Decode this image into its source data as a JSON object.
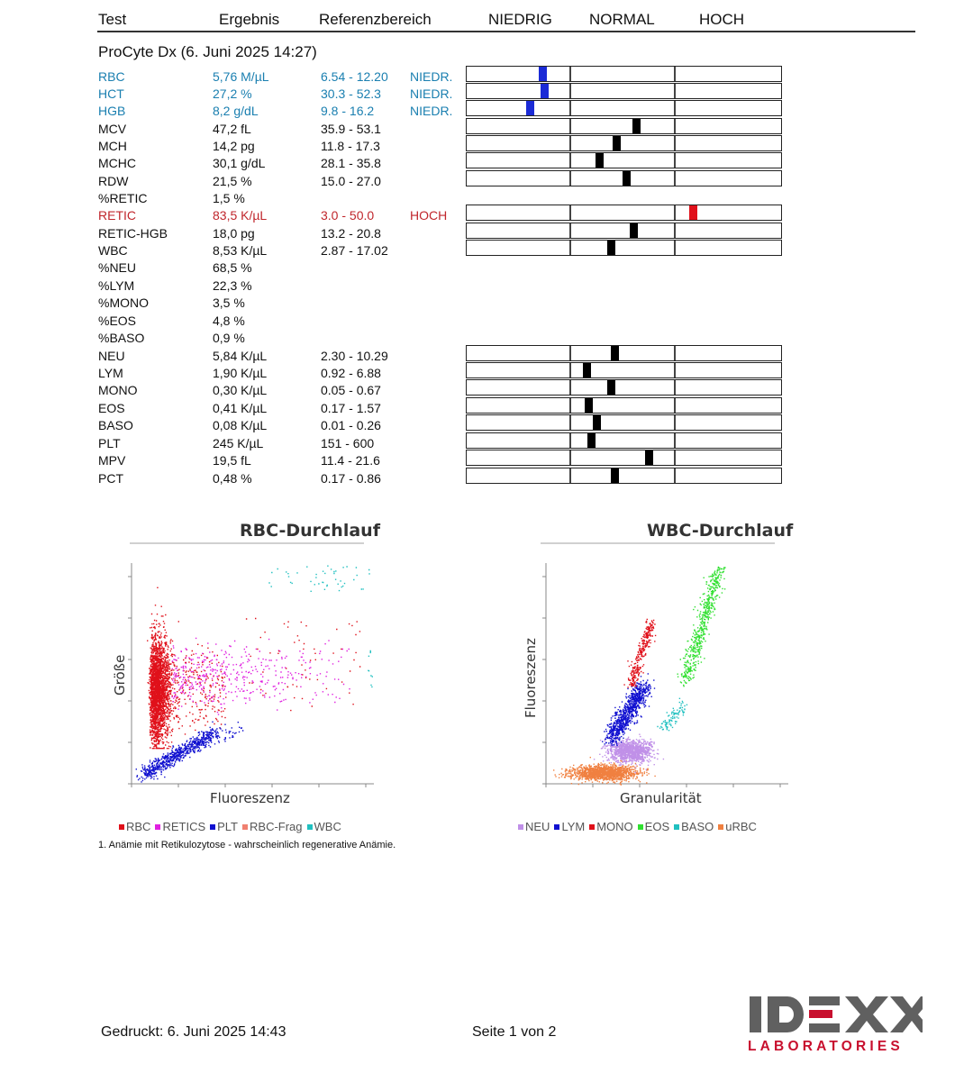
{
  "header": {
    "test": "Test",
    "result": "Ergebnis",
    "reference": "Referenzbereich",
    "low": "NIEDRIG",
    "normal": "NORMAL",
    "high": "HOCH"
  },
  "run_title": "ProCyte Dx (6. Juni 2025 14:27)",
  "colors": {
    "low_text": "#1a7fb0",
    "high_text": "#c0262c",
    "low_marker": "#1b2bd6",
    "high_marker": "#e0101a",
    "normal_marker": "#000000"
  },
  "results": [
    {
      "name": "RBC",
      "value": "5,76 M/µL",
      "ref": "6.54 - 12.20",
      "flag": "NIEDR.",
      "status": "low",
      "position": 0.76
    },
    {
      "name": "HCT",
      "value": "27,2 %",
      "ref": "30.3 - 52.3",
      "flag": "NIEDR.",
      "status": "low",
      "position": 0.78
    },
    {
      "name": "HGB",
      "value": "8,2 g/dL",
      "ref": "9.8 - 16.2",
      "flag": "NIEDR.",
      "status": "low",
      "position": 0.63
    },
    {
      "name": "MCV",
      "value": "47,2 fL",
      "ref": "35.9 - 53.1",
      "flag": "",
      "status": "normal",
      "position": 0.65
    },
    {
      "name": "MCH",
      "value": "14,2 pg",
      "ref": "11.8 - 17.3",
      "flag": "",
      "status": "normal",
      "position": 0.44
    },
    {
      "name": "MCHC",
      "value": "30,1 g/dL",
      "ref": "28.1 - 35.8",
      "flag": "",
      "status": "normal",
      "position": 0.26
    },
    {
      "name": "RDW",
      "value": "21,5 %",
      "ref": "15.0 - 27.0",
      "flag": "",
      "status": "normal",
      "position": 0.54
    },
    {
      "name": "%RETIC",
      "value": "1,5 %",
      "ref": "",
      "flag": "",
      "status": "none"
    },
    {
      "name": "RETIC",
      "value": "83,5 K/µL",
      "ref": "3.0 - 50.0",
      "flag": "HOCH",
      "status": "high",
      "position": 0.14
    },
    {
      "name": "RETIC-HGB",
      "value": "18,0 pg",
      "ref": "13.2 - 20.8",
      "flag": "",
      "status": "normal",
      "position": 0.62
    },
    {
      "name": "WBC",
      "value": "8,53 K/µL",
      "ref": "2.87 - 17.02",
      "flag": "",
      "status": "normal",
      "position": 0.38
    },
    {
      "name": "%NEU",
      "value": "68,5 %",
      "ref": "",
      "flag": "",
      "status": "none"
    },
    {
      "name": "%LYM",
      "value": "22,3 %",
      "ref": "",
      "flag": "",
      "status": "none"
    },
    {
      "name": "%MONO",
      "value": "3,5 %",
      "ref": "",
      "flag": "",
      "status": "none"
    },
    {
      "name": "%EOS",
      "value": "4,8 %",
      "ref": "",
      "flag": "",
      "status": "none"
    },
    {
      "name": "%BASO",
      "value": "0,9 %",
      "ref": "",
      "flag": "",
      "status": "none"
    },
    {
      "name": "NEU",
      "value": "5,84 K/µL",
      "ref": "2.30 - 10.29",
      "flag": "",
      "status": "normal",
      "position": 0.42
    },
    {
      "name": "LYM",
      "value": "1,90 K/µL",
      "ref": "0.92 - 6.88",
      "flag": "",
      "status": "normal",
      "position": 0.12
    },
    {
      "name": "MONO",
      "value": "0,30 K/µL",
      "ref": "0.05 - 0.67",
      "flag": "",
      "status": "normal",
      "position": 0.38
    },
    {
      "name": "EOS",
      "value": "0,41 K/µL",
      "ref": "0.17 - 1.57",
      "flag": "",
      "status": "normal",
      "position": 0.14
    },
    {
      "name": "BASO",
      "value": "0,08 K/µL",
      "ref": "0.01 - 0.26",
      "flag": "",
      "status": "normal",
      "position": 0.23
    },
    {
      "name": "PLT",
      "value": "245 K/µL",
      "ref": "151 - 600",
      "flag": "",
      "status": "normal",
      "position": 0.17
    },
    {
      "name": "MPV",
      "value": "19,5 fL",
      "ref": "11.4 - 21.6",
      "flag": "",
      "status": "normal",
      "position": 0.78
    },
    {
      "name": "PCT",
      "value": "0,48 %",
      "ref": "0.17 - 0.86",
      "flag": "",
      "status": "normal",
      "position": 0.42
    }
  ],
  "rbc_plot": {
    "title": "RBC-Durchlauf",
    "xlabel": "Fluoreszenz",
    "ylabel": "Größe",
    "legend": [
      {
        "label": "RBC",
        "color": "#e0101a"
      },
      {
        "label": "RETICS",
        "color": "#e020e0"
      },
      {
        "label": "PLT",
        "color": "#1010d0"
      },
      {
        "label": "RBC-Frag",
        "color": "#f08070"
      },
      {
        "label": "WBC",
        "color": "#20c0c0"
      }
    ]
  },
  "wbc_plot": {
    "title": "WBC-Durchlauf",
    "xlabel": "Granularität",
    "ylabel": "Fluoreszenz",
    "legend": [
      {
        "label": "NEU",
        "color": "#c090e8"
      },
      {
        "label": "LYM",
        "color": "#1010d0"
      },
      {
        "label": "MONO",
        "color": "#e0101a"
      },
      {
        "label": "EOS",
        "color": "#30e030"
      },
      {
        "label": "BASO",
        "color": "#20c0c0"
      },
      {
        "label": "uRBC",
        "color": "#f08040"
      }
    ]
  },
  "comment": "1. Anämie mit Retikulozytose - wahrscheinlich regenerative Anämie.",
  "footer": {
    "printed": "Gedruckt: 6. Juni 2025 14:43",
    "page": "Seite 1 von 2"
  },
  "logo": {
    "brand": "IDEXX",
    "sub": "LABORATORIES"
  }
}
